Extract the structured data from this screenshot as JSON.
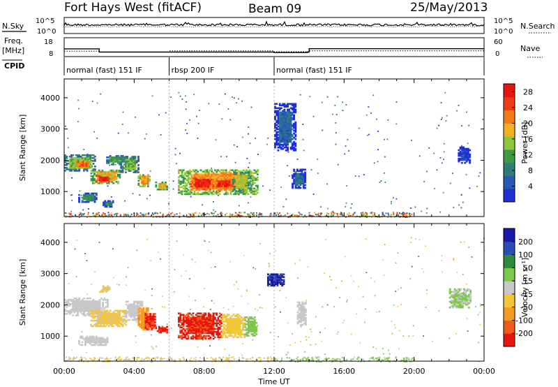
{
  "header": {
    "title": "Fort Hays West (fitACF)",
    "beam": "Beam 09",
    "date": "25/May/2013"
  },
  "top_panel": {
    "nsky_label": "N.Sky",
    "nsearch_label": "N.Search",
    "freq_label": "Freq.",
    "freq_unit": "[MHz]",
    "nave_label": "Nave",
    "cpid_label": "CPID",
    "nsky_ticks": [
      "10^5",
      "10^0"
    ],
    "nsearch_ticks": [
      "10^5",
      "10^0"
    ],
    "freq_ticks": [
      "18",
      "8"
    ],
    "nave_ticks": [
      "60",
      "0"
    ]
  },
  "cpid_segments": [
    {
      "label": "normal (fast) 151 IF",
      "start_h": 0,
      "end_h": 6
    },
    {
      "label": "rbsp 200 IF",
      "start_h": 6,
      "end_h": 12
    },
    {
      "label": "normal (fast) 151 IF",
      "start_h": 12,
      "end_h": 24
    }
  ],
  "chart_data": [
    {
      "type": "heatmap",
      "title": "",
      "xlabel": "Time UT",
      "ylabel": "Slant Range [km]",
      "x_ticks": [
        "00:00",
        "04:00",
        "08:00",
        "12:00",
        "16:00",
        "20:00",
        "00:00"
      ],
      "xlim_hours": [
        0,
        24
      ],
      "y_ticks": [
        1000,
        2000,
        3000,
        4000
      ],
      "ylim": [
        200,
        4600
      ],
      "colorbar": {
        "label": "Power [dB]",
        "ticks": [
          4,
          8,
          12,
          16,
          20,
          24,
          28
        ],
        "range": [
          0,
          30
        ]
      },
      "regions": [
        {
          "t0": 0.0,
          "t1": 1.8,
          "r0": 1650,
          "r1": 2150,
          "value": 14
        },
        {
          "t0": 0.5,
          "t1": 1.5,
          "r0": 1750,
          "r1": 2000,
          "value": 22
        },
        {
          "t0": 1.5,
          "t1": 3.2,
          "r0": 1250,
          "r1": 1700,
          "value": 18
        },
        {
          "t0": 1.8,
          "t1": 2.6,
          "r0": 1300,
          "r1": 1500,
          "value": 28
        },
        {
          "t0": 2.4,
          "t1": 3.4,
          "r0": 1850,
          "r1": 2150,
          "value": 12
        },
        {
          "t0": 3.2,
          "t1": 4.2,
          "r0": 1600,
          "r1": 2100,
          "value": 14
        },
        {
          "t0": 4.2,
          "t1": 4.9,
          "r0": 1150,
          "r1": 1550,
          "value": 20
        },
        {
          "t0": 5.2,
          "t1": 5.9,
          "r0": 1050,
          "r1": 1300,
          "value": 18
        },
        {
          "t0": 0.8,
          "t1": 1.8,
          "r0": 650,
          "r1": 950,
          "value": 10
        },
        {
          "t0": 2.2,
          "t1": 2.8,
          "r0": 500,
          "r1": 700,
          "value": 8
        },
        {
          "t0": 6.5,
          "t1": 11.0,
          "r0": 900,
          "r1": 1700,
          "value": 20
        },
        {
          "t0": 7.2,
          "t1": 8.5,
          "r0": 1050,
          "r1": 1450,
          "value": 28
        },
        {
          "t0": 8.5,
          "t1": 9.6,
          "r0": 1100,
          "r1": 1400,
          "value": 27
        },
        {
          "t0": 9.6,
          "t1": 10.6,
          "r0": 1000,
          "r1": 1600,
          "value": 16
        },
        {
          "t0": 12.0,
          "t1": 13.2,
          "r0": 2300,
          "r1": 3800,
          "value": 6
        },
        {
          "t0": 13.0,
          "t1": 13.8,
          "r0": 1100,
          "r1": 1700,
          "value": 6
        },
        {
          "t0": 22.5,
          "t1": 23.2,
          "r0": 1900,
          "r1": 2400,
          "value": 4
        }
      ]
    },
    {
      "type": "heatmap",
      "title": "",
      "xlabel": "Time UT",
      "ylabel": "Slant Range [km]",
      "x_ticks": [
        "00:00",
        "04:00",
        "08:00",
        "12:00",
        "16:00",
        "20:00",
        "00:00"
      ],
      "xlim_hours": [
        0,
        24
      ],
      "y_ticks": [
        1000,
        2000,
        3000,
        4000
      ],
      "ylim": [
        200,
        4600
      ],
      "colorbar": {
        "label": "Velocity [m s⁻¹]",
        "ticks": [
          -200,
          -100,
          -50,
          -15,
          15,
          50,
          100,
          200
        ],
        "range": [
          -250,
          250
        ]
      },
      "regions": [
        {
          "t0": 0.0,
          "t1": 2.5,
          "r0": 1650,
          "r1": 2200,
          "value": 0
        },
        {
          "t0": 1.5,
          "t1": 3.5,
          "r0": 1300,
          "r1": 1800,
          "value": -40
        },
        {
          "t0": 3.5,
          "t1": 4.4,
          "r0": 1500,
          "r1": 2100,
          "value": 0
        },
        {
          "t0": 4.2,
          "t1": 4.8,
          "r0": 1200,
          "r1": 1900,
          "value": -120
        },
        {
          "t0": 4.6,
          "t1": 5.2,
          "r0": 1200,
          "r1": 1700,
          "value": -200
        },
        {
          "t0": 5.2,
          "t1": 5.9,
          "r0": 1100,
          "r1": 1300,
          "value": -200
        },
        {
          "t0": 0.8,
          "t1": 2.5,
          "r0": 700,
          "r1": 1000,
          "value": 0
        },
        {
          "t0": 2.0,
          "t1": 2.6,
          "r0": 2400,
          "r1": 2600,
          "value": -40
        },
        {
          "t0": 6.5,
          "t1": 9.0,
          "r0": 900,
          "r1": 1750,
          "value": -200
        },
        {
          "t0": 9.0,
          "t1": 10.3,
          "r0": 950,
          "r1": 1700,
          "value": -60
        },
        {
          "t0": 10.3,
          "t1": 11.0,
          "r0": 1000,
          "r1": 1600,
          "value": 60
        },
        {
          "t0": 11.6,
          "t1": 12.5,
          "r0": 2600,
          "r1": 3000,
          "value": 200
        },
        {
          "t0": 13.3,
          "t1": 13.8,
          "r0": 1300,
          "r1": 2100,
          "value": 0
        },
        {
          "t0": 22.0,
          "t1": 23.2,
          "r0": 1900,
          "r1": 2500,
          "value": 30
        }
      ]
    }
  ]
}
